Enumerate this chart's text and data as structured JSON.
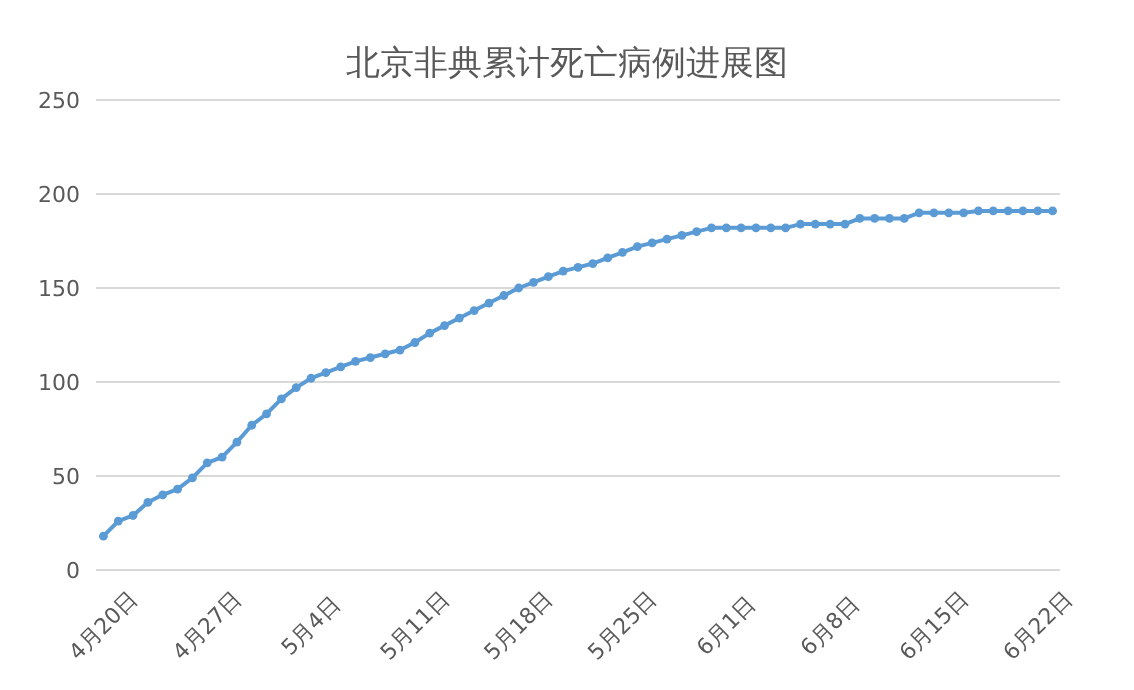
{
  "chart_data": {
    "type": "line",
    "title": "北京非典累计死亡病例进展图",
    "categories": [
      "4月20日",
      null,
      null,
      null,
      null,
      null,
      null,
      "4月27日",
      null,
      null,
      null,
      null,
      null,
      null,
      "5月4日",
      null,
      null,
      null,
      null,
      null,
      null,
      "5月11日",
      null,
      null,
      null,
      null,
      null,
      null,
      "5月18日",
      null,
      null,
      null,
      null,
      null,
      null,
      "5月25日",
      null,
      null,
      null,
      null,
      null,
      null,
      "6月1日",
      null,
      null,
      null,
      null,
      null,
      null,
      "6月8日",
      null,
      null,
      null,
      null,
      null,
      null,
      "6月15日",
      null,
      null,
      null,
      null,
      null,
      null,
      "6月22日",
      null
    ],
    "series": [
      {
        "color": "#5b9bd5",
        "values": [
          18,
          26,
          29,
          36,
          40,
          43,
          49,
          57,
          60,
          68,
          77,
          83,
          91,
          97,
          102,
          105,
          108,
          111,
          113,
          115,
          117,
          121,
          126,
          130,
          134,
          138,
          142,
          146,
          150,
          153,
          156,
          159,
          161,
          163,
          166,
          169,
          172,
          174,
          176,
          178,
          180,
          182,
          182,
          182,
          182,
          182,
          182,
          184,
          184,
          184,
          184,
          187,
          187,
          187,
          187,
          190,
          190,
          190,
          190,
          191,
          191,
          191,
          191,
          191,
          191
        ]
      }
    ],
    "ylim": [
      0,
      250
    ],
    "yticks": [
      0,
      50,
      100,
      150,
      200,
      250
    ],
    "grid": "y",
    "marker": "circle",
    "line_style": "solid",
    "legend": false
  }
}
